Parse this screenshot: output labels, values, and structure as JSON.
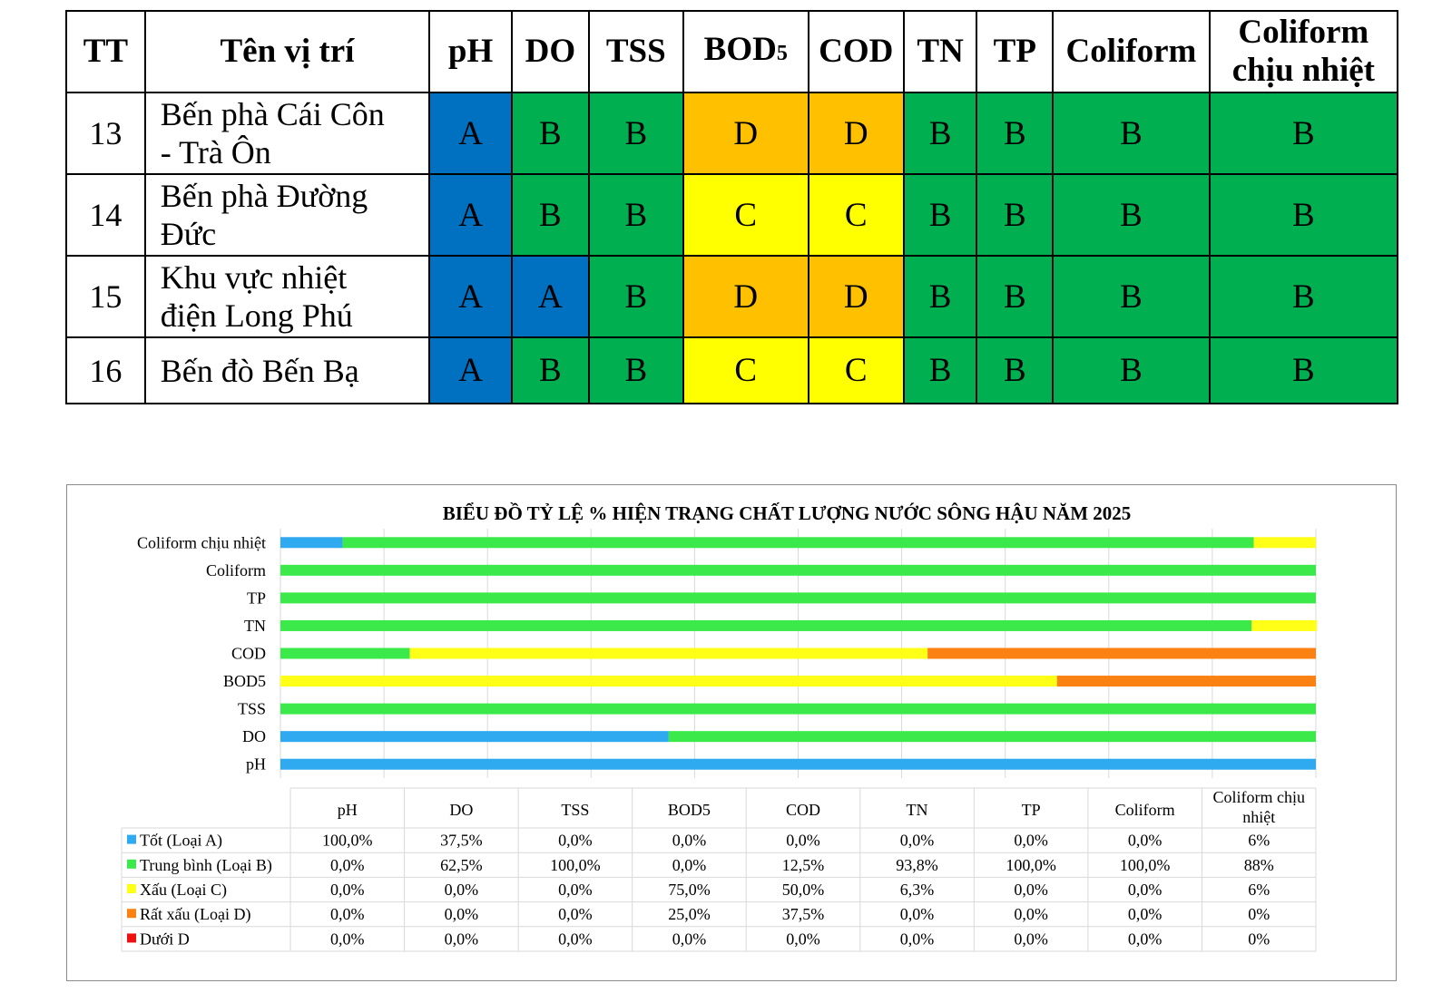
{
  "table": {
    "headers": {
      "tt": "TT",
      "name": "Tên vị trí",
      "ph": "pH",
      "do": "DO",
      "tss": "TSS",
      "bod_main": "BOD",
      "bod_sub": "5",
      "cod": "COD",
      "tn": "TN",
      "tp": "TP",
      "coliform": "Coliform",
      "coliform_heat_1": "Coliform",
      "coliform_heat_2": "chịu nhiệt"
    },
    "rows": [
      {
        "tt": "13",
        "name_1": "Bến phà Cái Côn",
        "name_2": "- Trà Ôn",
        "grades": [
          "A",
          "B",
          "B",
          "D",
          "D",
          "B",
          "B",
          "B",
          "B"
        ]
      },
      {
        "tt": "14",
        "name_1": "Bến phà Đường",
        "name_2": "Đức",
        "grades": [
          "A",
          "B",
          "B",
          "C",
          "C",
          "B",
          "B",
          "B",
          "B"
        ]
      },
      {
        "tt": "15",
        "name_1": "Khu vực nhiệt",
        "name_2": "điện Long Phú",
        "grades": [
          "A",
          "A",
          "B",
          "D",
          "D",
          "B",
          "B",
          "B",
          "B"
        ]
      },
      {
        "tt": "16",
        "name_1": "Bến đò Bến Bạ",
        "name_2": "",
        "grades": [
          "A",
          "B",
          "B",
          "C",
          "C",
          "B",
          "B",
          "B",
          "B"
        ]
      }
    ],
    "grade_colors": {
      "A": "#0070c0",
      "B": "#00b050",
      "C": "#ffff00",
      "D": "#ffc000"
    }
  },
  "chart_data": {
    "type": "bar",
    "orientation": "horizontal",
    "stacked": "percent",
    "title": "BIỂU ĐỒ TỶ LỆ % HIỆN TRẠNG CHẤT LƯỢNG NƯỚC SÔNG HẬU  NĂM 2025",
    "categories": [
      "pH",
      "DO",
      "TSS",
      "BOD5",
      "COD",
      "TN",
      "TP",
      "Coliform",
      "Coliform chịu nhiệt"
    ],
    "category_header_lines": [
      [
        "pH"
      ],
      [
        "DO"
      ],
      [
        "TSS"
      ],
      [
        "BOD5"
      ],
      [
        "COD"
      ],
      [
        "TN"
      ],
      [
        "TP"
      ],
      [
        "Coliform"
      ],
      [
        "Coliform chịu",
        "nhiệt"
      ]
    ],
    "series": [
      {
        "name": "Tốt (Loại A)",
        "color": "#2fa9ef",
        "values": [
          100.0,
          37.5,
          0.0,
          0.0,
          0.0,
          0.0,
          0.0,
          0.0,
          6
        ],
        "labels": [
          "100,0%",
          "37,5%",
          "0,0%",
          "0,0%",
          "0,0%",
          "0,0%",
          "0,0%",
          "0,0%",
          "6%"
        ]
      },
      {
        "name": "Trung bình (Loại B)",
        "color": "#3bea4a",
        "values": [
          0.0,
          62.5,
          100.0,
          0.0,
          12.5,
          93.8,
          100.0,
          100.0,
          88
        ],
        "labels": [
          "0,0%",
          "62,5%",
          "100,0%",
          "0,0%",
          "12,5%",
          "93,8%",
          "100,0%",
          "100,0%",
          "88%"
        ]
      },
      {
        "name": "Xấu (Loại C)",
        "color": "#ffff17",
        "values": [
          0.0,
          0.0,
          0.0,
          75.0,
          50.0,
          6.3,
          0.0,
          0.0,
          6
        ],
        "labels": [
          "0,0%",
          "0,0%",
          "0,0%",
          "75,0%",
          "50,0%",
          "6,3%",
          "0,0%",
          "0,0%",
          "6%"
        ]
      },
      {
        "name": "Rất xấu (Loại D)",
        "color": "#fc8113",
        "values": [
          0.0,
          0.0,
          0.0,
          25.0,
          37.5,
          0.0,
          0.0,
          0.0,
          0
        ],
        "labels": [
          "0,0%",
          "0,0%",
          "0,0%",
          "25,0%",
          "37,5%",
          "0,0%",
          "0,0%",
          "0,0%",
          "0%"
        ]
      },
      {
        "name": "Dưới D",
        "color": "#ee1111",
        "values": [
          0.0,
          0.0,
          0.0,
          0.0,
          0.0,
          0.0,
          0.0,
          0.0,
          0
        ],
        "labels": [
          "0,0%",
          "0,0%",
          "0,0%",
          "0,0%",
          "0,0%",
          "0,0%",
          "0,0%",
          "0,0%",
          "0%"
        ]
      }
    ],
    "xlim": [
      0,
      100
    ],
    "grid": true,
    "legend": "data-table-bottom"
  }
}
